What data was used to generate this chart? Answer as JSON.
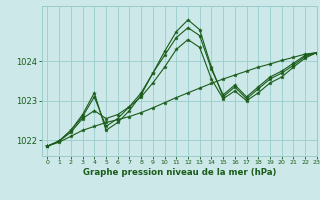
{
  "title": "Graphe pression niveau de la mer (hPa)",
  "bg_color": "#cce8e8",
  "grid_color": "#99cccc",
  "line_color": "#1a5c1a",
  "line_color2": "#2d7a2d",
  "xlim": [
    -0.5,
    23
  ],
  "ylim": [
    1021.6,
    1025.4
  ],
  "yticks": [
    1022,
    1023,
    1024
  ],
  "xticks": [
    0,
    1,
    2,
    3,
    4,
    5,
    6,
    7,
    8,
    9,
    10,
    11,
    12,
    13,
    14,
    15,
    16,
    17,
    18,
    19,
    20,
    21,
    22,
    23
  ],
  "series": [
    [
      1021.85,
      1021.95,
      1022.1,
      1022.25,
      1022.35,
      1022.45,
      1022.52,
      1022.6,
      1022.7,
      1022.82,
      1022.95,
      1023.08,
      1023.2,
      1023.32,
      1023.44,
      1023.55,
      1023.65,
      1023.75,
      1023.85,
      1023.93,
      1024.02,
      1024.1,
      1024.18,
      1024.22
    ],
    [
      1021.85,
      1021.98,
      1022.2,
      1022.55,
      1022.75,
      1022.55,
      1022.65,
      1022.85,
      1023.1,
      1023.45,
      1023.85,
      1024.3,
      1024.55,
      1024.35,
      1023.55,
      1023.05,
      1023.25,
      1023.0,
      1023.2,
      1023.45,
      1023.6,
      1023.85,
      1024.08,
      1024.22
    ],
    [
      1021.85,
      1021.98,
      1022.25,
      1022.6,
      1023.1,
      1022.35,
      1022.55,
      1022.85,
      1023.2,
      1023.7,
      1024.15,
      1024.6,
      1024.85,
      1024.65,
      1023.8,
      1023.15,
      1023.4,
      1023.1,
      1023.35,
      1023.6,
      1023.75,
      1023.95,
      1024.15,
      1024.22
    ],
    [
      1021.85,
      1021.98,
      1022.25,
      1022.65,
      1023.2,
      1022.25,
      1022.45,
      1022.75,
      1023.15,
      1023.7,
      1024.25,
      1024.75,
      1025.05,
      1024.8,
      1023.85,
      1023.1,
      1023.35,
      1023.05,
      1023.3,
      1023.55,
      1023.7,
      1023.9,
      1024.12,
      1024.22
    ]
  ]
}
